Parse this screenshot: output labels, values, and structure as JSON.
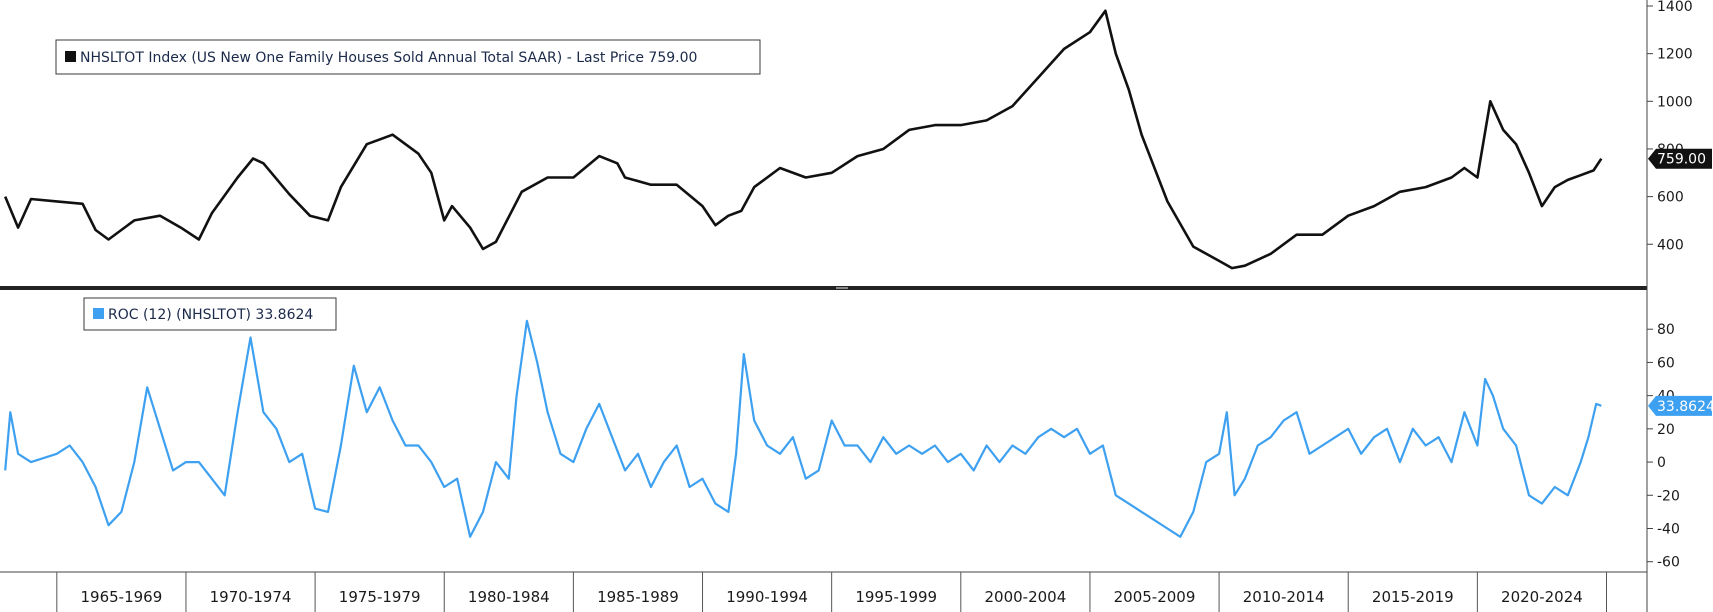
{
  "chart_data": [
    {
      "type": "line",
      "legend": "NHSLTOT Index (US New One Family Houses Sold Annual Total SAAR) - Last Price 759.00",
      "last_value_label": "759.00",
      "ylim": [
        250,
        1400
      ],
      "yticks": [
        400,
        600,
        800,
        1000,
        1200,
        1400
      ],
      "color": "#111111",
      "series": [
        {
          "x": [
            1963.0,
            1963.5,
            1964.0,
            1965.0,
            1966.0,
            1966.5,
            1967.0,
            1968.0,
            1969.0,
            1969.8,
            1970.5,
            1971.0,
            1972.0,
            1972.6,
            1973.0,
            1974.0,
            1974.8,
            1975.5,
            1976.0,
            1977.0,
            1978.0,
            1979.0,
            1979.5,
            1980.0,
            1980.3,
            1981.0,
            1981.5,
            1982.0,
            1983.0,
            1984.0,
            1985.0,
            1986.0,
            1986.7,
            1987.0,
            1988.0,
            1989.0,
            1990.0,
            1990.5,
            1991.0,
            1991.5,
            1992.0,
            1993.0,
            1994.0,
            1995.0,
            1996.0,
            1997.0,
            1998.0,
            1999.0,
            2000.0,
            2001.0,
            2002.0,
            2003.0,
            2004.0,
            2005.0,
            2005.6,
            2006.0,
            2006.5,
            2007.0,
            2008.0,
            2009.0,
            2010.0,
            2010.5,
            2011.0,
            2012.0,
            2013.0,
            2014.0,
            2015.0,
            2016.0,
            2017.0,
            2018.0,
            2019.0,
            2019.5,
            2020.0,
            2020.5,
            2021.0,
            2021.5,
            2022.0,
            2022.5,
            2023.0,
            2023.5,
            2024.0,
            2024.5,
            2024.8
          ],
          "y": [
            600,
            470,
            590,
            580,
            570,
            460,
            420,
            500,
            520,
            470,
            420,
            530,
            680,
            760,
            740,
            610,
            520,
            500,
            640,
            820,
            860,
            780,
            700,
            500,
            560,
            470,
            380,
            410,
            620,
            680,
            680,
            770,
            740,
            680,
            650,
            650,
            560,
            480,
            520,
            540,
            640,
            720,
            680,
            700,
            770,
            800,
            880,
            900,
            900,
            920,
            980,
            1100,
            1220,
            1290,
            1380,
            1200,
            1050,
            860,
            580,
            390,
            330,
            300,
            310,
            360,
            440,
            440,
            520,
            560,
            620,
            640,
            680,
            720,
            680,
            1000,
            880,
            820,
            700,
            560,
            640,
            670,
            690,
            710,
            759
          ]
        }
      ]
    },
    {
      "type": "line",
      "legend": "ROC (12) (NHSLTOT) 33.8624",
      "last_value_label": "33.8624",
      "ylim": [
        -65,
        100
      ],
      "yticks": [
        -60,
        -40,
        -20,
        0,
        20,
        40,
        60,
        80
      ],
      "color": "#3ea0f0",
      "series": [
        {
          "x": [
            1963.0,
            1963.2,
            1963.5,
            1964.0,
            1965.0,
            1965.5,
            1966.0,
            1966.5,
            1967.0,
            1967.5,
            1968.0,
            1968.5,
            1969.0,
            1969.5,
            1970.0,
            1970.5,
            1971.0,
            1971.5,
            1972.0,
            1972.5,
            1973.0,
            1973.5,
            1974.0,
            1974.5,
            1975.0,
            1975.5,
            1976.0,
            1976.5,
            1977.0,
            1977.5,
            1978.0,
            1978.5,
            1979.0,
            1979.5,
            1980.0,
            1980.5,
            1981.0,
            1981.5,
            1982.0,
            1982.5,
            1982.8,
            1983.2,
            1983.6,
            1984.0,
            1984.5,
            1985.0,
            1985.5,
            1986.0,
            1986.5,
            1987.0,
            1987.5,
            1988.0,
            1988.5,
            1989.0,
            1989.5,
            1990.0,
            1990.5,
            1991.0,
            1991.3,
            1991.6,
            1992.0,
            1992.5,
            1993.0,
            1993.5,
            1994.0,
            1994.5,
            1995.0,
            1995.5,
            1996.0,
            1996.5,
            1997.0,
            1997.5,
            1998.0,
            1998.5,
            1999.0,
            1999.5,
            2000.0,
            2000.5,
            2001.0,
            2001.5,
            2002.0,
            2002.5,
            2003.0,
            2003.5,
            2004.0,
            2004.5,
            2005.0,
            2005.5,
            2006.0,
            2006.5,
            2007.0,
            2007.5,
            2008.0,
            2008.5,
            2009.0,
            2009.5,
            2010.0,
            2010.3,
            2010.6,
            2011.0,
            2011.5,
            2012.0,
            2012.5,
            2013.0,
            2013.5,
            2014.0,
            2014.5,
            2015.0,
            2015.5,
            2016.0,
            2016.5,
            2017.0,
            2017.5,
            2018.0,
            2018.5,
            2019.0,
            2019.5,
            2020.0,
            2020.3,
            2020.6,
            2021.0,
            2021.5,
            2022.0,
            2022.5,
            2023.0,
            2023.5,
            2024.0,
            2024.3,
            2024.6,
            2024.8
          ],
          "y": [
            -5,
            30,
            5,
            0,
            5,
            10,
            0,
            -15,
            -38,
            -30,
            0,
            45,
            20,
            -5,
            0,
            0,
            -10,
            -20,
            30,
            75,
            30,
            20,
            0,
            5,
            -28,
            -30,
            10,
            58,
            30,
            45,
            25,
            10,
            10,
            0,
            -15,
            -10,
            -45,
            -30,
            0,
            -10,
            40,
            85,
            60,
            30,
            5,
            0,
            20,
            35,
            15,
            -5,
            5,
            -15,
            0,
            10,
            -15,
            -10,
            -25,
            -30,
            5,
            65,
            25,
            10,
            5,
            15,
            -10,
            -5,
            25,
            10,
            10,
            0,
            15,
            5,
            10,
            5,
            10,
            0,
            5,
            -5,
            10,
            0,
            10,
            5,
            15,
            20,
            15,
            20,
            5,
            10,
            -20,
            -25,
            -30,
            -35,
            -40,
            -45,
            -30,
            0,
            5,
            30,
            -20,
            -10,
            10,
            15,
            25,
            30,
            5,
            10,
            15,
            20,
            5,
            15,
            20,
            0,
            20,
            10,
            15,
            0,
            30,
            10,
            50,
            40,
            20,
            10,
            -20,
            -25,
            -15,
            -20,
            0,
            15,
            35,
            33.86
          ]
        }
      ]
    }
  ],
  "x_axis": {
    "xlim": [
      1962.8,
      2025.6
    ],
    "period_boundaries": [
      1965,
      1970,
      1975,
      1980,
      1985,
      1990,
      1995,
      2000,
      2005,
      2010,
      2015,
      2020,
      2025
    ],
    "period_labels": [
      "1965-1969",
      "1970-1974",
      "1975-1979",
      "1980-1984",
      "1985-1989",
      "1990-1994",
      "1995-1999",
      "2000-2004",
      "2005-2009",
      "2010-2014",
      "2015-2019",
      "2020-2024"
    ]
  }
}
